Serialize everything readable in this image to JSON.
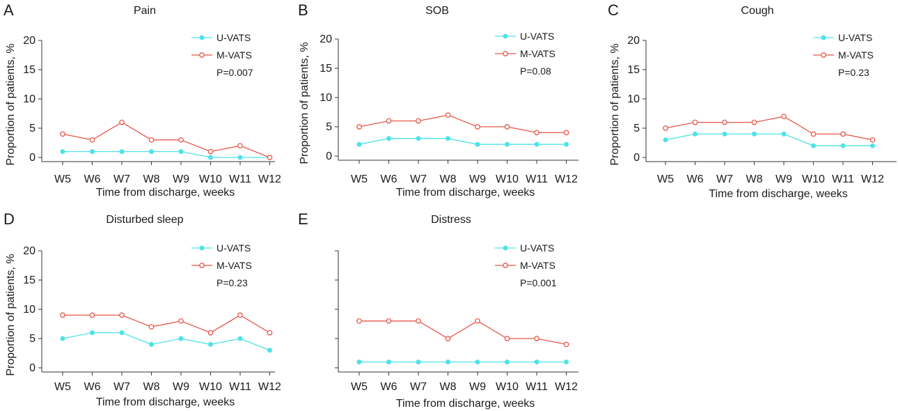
{
  "colors": {
    "u_vats": "#4fe3e6",
    "m_vats": "#e8574a",
    "axis": "#333333",
    "text": "#1a1a1a"
  },
  "chart_data": [
    {
      "type": "line",
      "letter": "A",
      "title": "Pain",
      "xlabel": "Time from discharge, weeks",
      "ylabel": "Proportion of patients, %",
      "categories": [
        "W5",
        "W6",
        "W7",
        "W8",
        "W9",
        "W10",
        "W11",
        "W12"
      ],
      "yticks": [
        "0",
        "5",
        "10",
        "15",
        "20"
      ],
      "ylim": [
        0,
        20
      ],
      "series": [
        {
          "name": "U-VATS",
          "values": [
            1,
            1,
            1,
            1,
            1,
            0,
            0,
            0
          ]
        },
        {
          "name": "M-VATS",
          "values": [
            4,
            3,
            6,
            3,
            3,
            1,
            2,
            0
          ]
        }
      ],
      "annotation": "P=0.007",
      "legend": "top-right"
    },
    {
      "type": "line",
      "letter": "B",
      "title": "SOB",
      "xlabel": "Time from discharge, weeks",
      "ylabel": "Proportion of patients, %",
      "categories": [
        "W5",
        "W6",
        "W7",
        "W8",
        "W9",
        "W10",
        "W11",
        "W12"
      ],
      "yticks": [
        "0",
        "5",
        "10",
        "15",
        "20"
      ],
      "ylim": [
        0,
        20
      ],
      "series": [
        {
          "name": "U-VATS",
          "values": [
            2,
            3,
            3,
            3,
            2,
            2,
            2,
            2
          ]
        },
        {
          "name": "M-VATS",
          "values": [
            5,
            6,
            6,
            7,
            5,
            5,
            4,
            4
          ]
        }
      ],
      "annotation": "P=0.08",
      "legend": "top-right"
    },
    {
      "type": "line",
      "letter": "C",
      "title": "Cough",
      "xlabel": "Time from discharge, weeks",
      "ylabel": "Proportion of patients, %",
      "categories": [
        "W5",
        "W6",
        "W7",
        "W8",
        "W9",
        "W10",
        "W11",
        "W12"
      ],
      "yticks": [
        "0",
        "5",
        "10",
        "15",
        "20"
      ],
      "ylim": [
        0,
        20
      ],
      "series": [
        {
          "name": "U-VATS",
          "values": [
            3,
            4,
            4,
            4,
            4,
            2,
            2,
            2
          ]
        },
        {
          "name": "M-VATS",
          "values": [
            5,
            6,
            6,
            6,
            7,
            4,
            4,
            3
          ]
        }
      ],
      "annotation": "P=0.23",
      "legend": "top-right"
    },
    {
      "type": "line",
      "letter": "D",
      "title": "Disturbed sleep",
      "xlabel": "Time from discharge, weeks",
      "ylabel": "Proportion of patients, %",
      "categories": [
        "W5",
        "W6",
        "W7",
        "W8",
        "W9",
        "W10",
        "W11",
        "W12"
      ],
      "yticks": [
        "0",
        "5",
        "10",
        "15",
        "20"
      ],
      "ylim": [
        0,
        20
      ],
      "series": [
        {
          "name": "U-VATS",
          "values": [
            5,
            6,
            6,
            4,
            5,
            4,
            5,
            3
          ]
        },
        {
          "name": "M-VATS",
          "values": [
            9,
            9,
            9,
            7,
            8,
            6,
            9,
            6
          ]
        }
      ],
      "annotation": "P=0.23",
      "legend": "top-right"
    },
    {
      "type": "line",
      "letter": "E",
      "title": "Distress",
      "xlabel": "Time from discharge, weeks",
      "ylabel": "",
      "categories": [
        "W5",
        "W6",
        "W7",
        "W8",
        "W9",
        "W10",
        "W11",
        "W12"
      ],
      "yticks": [],
      "ylim": [
        0,
        20
      ],
      "series": [
        {
          "name": "U-VATS",
          "values": [
            1,
            1,
            1,
            1,
            1,
            1,
            1,
            1
          ]
        },
        {
          "name": "M-VATS",
          "values": [
            8,
            8,
            8,
            5,
            8,
            5,
            5,
            4
          ]
        }
      ],
      "annotation": "P=0.001",
      "legend": "top-right"
    }
  ]
}
